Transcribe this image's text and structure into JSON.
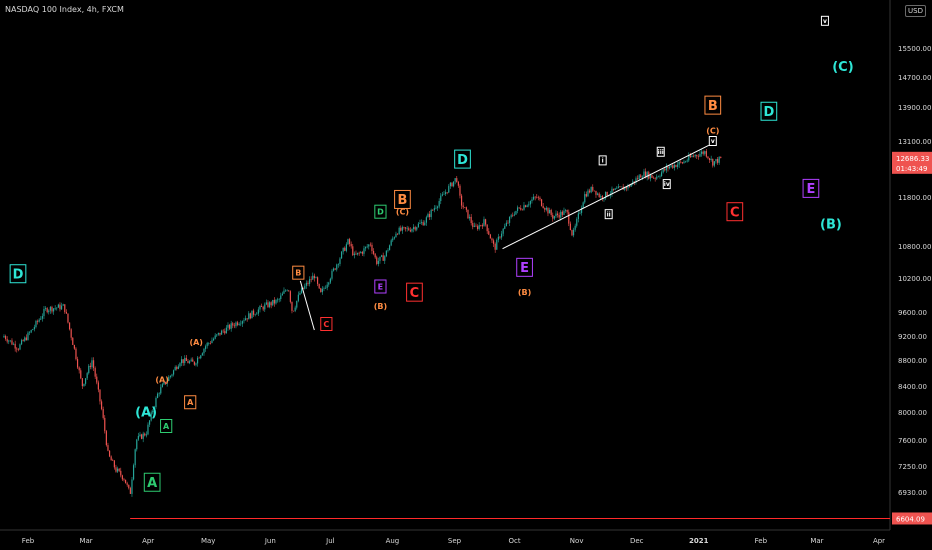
{
  "header": {
    "title": "NASDAQ 100 Index, 4h, FXCM",
    "currency": "USD"
  },
  "colors": {
    "background": "#000000",
    "candle_up": "#26a69a",
    "candle_down": "#ef5350",
    "axis_text": "#d9d9d9",
    "price_tag_bg": "#ef5350",
    "support_line": "#ff2a2a",
    "trend_line": "#ffffff"
  },
  "chart_data": {
    "type": "line",
    "x_axis": {
      "ticks": [
        "Feb",
        "Mar",
        "Apr",
        "May",
        "Jun",
        "Jul",
        "Aug",
        "Sep",
        "Oct",
        "Nov",
        "Dec",
        "2021",
        "Feb",
        "Mar",
        "Apr"
      ]
    },
    "y_axis": {
      "ticks": [
        "15500.00",
        "14700.00",
        "13900.00",
        "13100.00",
        "11800.00",
        "10800.00",
        "10200.00",
        "9600.00",
        "9200.00",
        "8800.00",
        "8400.00",
        "8000.00",
        "7600.00",
        "7250.00",
        "6930.00"
      ],
      "range": [
        6550,
        16300
      ]
    },
    "price_tags": {
      "current_price": "12686.33",
      "countdown": "01:43:49",
      "support_price": "6604.09"
    },
    "series": [
      {
        "x": [
          "2020-01-20",
          "2020-01-27",
          "2020-02-03",
          "2020-02-10",
          "2020-02-19",
          "2020-02-24",
          "2020-02-28",
          "2020-03-04",
          "2020-03-09",
          "2020-03-12",
          "2020-03-16",
          "2020-03-20",
          "2020-03-23",
          "2020-03-26",
          "2020-03-31",
          "2020-04-06",
          "2020-04-13",
          "2020-04-17",
          "2020-04-24",
          "2020-04-30",
          "2020-05-07",
          "2020-05-14",
          "2020-05-22",
          "2020-05-29",
          "2020-06-05",
          "2020-06-10",
          "2020-06-12",
          "2020-06-16",
          "2020-06-23",
          "2020-06-26",
          "2020-07-02",
          "2020-07-10",
          "2020-07-13",
          "2020-07-17",
          "2020-07-21",
          "2020-07-24",
          "2020-07-28",
          "2020-08-03",
          "2020-08-10",
          "2020-08-17",
          "2020-08-24",
          "2020-09-02",
          "2020-09-04",
          "2020-09-08",
          "2020-09-11",
          "2020-09-16",
          "2020-09-21",
          "2020-09-24",
          "2020-10-01",
          "2020-10-12",
          "2020-10-20",
          "2020-10-27",
          "2020-10-30",
          "2020-11-05",
          "2020-11-09",
          "2020-11-13",
          "2020-11-20",
          "2020-11-27",
          "2020-12-04",
          "2020-12-10",
          "2020-12-17",
          "2020-12-24",
          "2020-12-29",
          "2021-01-04",
          "2021-01-08",
          "2021-01-12"
        ],
        "y": [
          9200,
          9000,
          9300,
          9650,
          9700,
          9000,
          8400,
          8800,
          8000,
          7400,
          7200,
          7100,
          6900,
          7600,
          7700,
          8300,
          8600,
          8800,
          8750,
          9050,
          9250,
          9400,
          9550,
          9700,
          9800,
          10050,
          9600,
          9950,
          10250,
          9900,
          10300,
          10900,
          10600,
          10700,
          10850,
          10500,
          10600,
          11100,
          11150,
          11300,
          11700,
          12250,
          11700,
          11400,
          11150,
          11300,
          10750,
          11050,
          11500,
          11800,
          11400,
          11500,
          11000,
          11850,
          12000,
          11800,
          11950,
          12050,
          12350,
          12250,
          12500,
          12600,
          12750,
          12850,
          12600,
          12686
        ]
      }
    ],
    "grid": false,
    "annotations": [
      {
        "text": "D",
        "style": "boxed",
        "color": "#2ee6d6",
        "x": "2020-01-27",
        "y": 10280
      },
      {
        "text": "(A)",
        "style": "plain",
        "color": "#2ee6d6",
        "x": "2020-03-31",
        "y": 8000
      },
      {
        "text": "A",
        "style": "boxed",
        "color": "#2ecc71",
        "x": "2020-04-03",
        "y": 7050
      },
      {
        "text": "A",
        "style": "boxed",
        "color": "#2ecc71",
        "x": "2020-04-10",
        "y": 7800
      },
      {
        "text": "(A)",
        "style": "plain",
        "color": "#ff8c42",
        "x": "2020-04-08",
        "y": 8500
      },
      {
        "text": "A",
        "style": "boxed",
        "color": "#ff8c42",
        "x": "2020-04-22",
        "y": 8150
      },
      {
        "text": "(A)",
        "style": "plain",
        "color": "#ff8c42",
        "x": "2020-04-25",
        "y": 9100
      },
      {
        "text": "B",
        "style": "boxed",
        "color": "#ff8c42",
        "x": "2020-06-15",
        "y": 10300
      },
      {
        "text": "C",
        "style": "boxed",
        "color": "#ff3030",
        "x": "2020-06-29",
        "y": 9400
      },
      {
        "text": "D",
        "style": "boxed",
        "color": "#2ecc71",
        "x": "2020-07-26",
        "y": 11500
      },
      {
        "text": "E",
        "style": "boxed",
        "color": "#b040ff",
        "x": "2020-07-26",
        "y": 10050
      },
      {
        "text": "(B)",
        "style": "plain",
        "color": "#ff8c42",
        "x": "2020-07-26",
        "y": 9700
      },
      {
        "text": "B",
        "style": "boxed",
        "color": "#ff8c42",
        "x": "2020-08-06",
        "y": 11750
      },
      {
        "text": "(C)",
        "style": "plain",
        "color": "#ff8c42",
        "x": "2020-08-06",
        "y": 11500
      },
      {
        "text": "C",
        "style": "boxed",
        "color": "#ff3030",
        "x": "2020-08-12",
        "y": 9950
      },
      {
        "text": "D",
        "style": "boxed",
        "color": "#2ee6d6",
        "x": "2020-09-05",
        "y": 12680
      },
      {
        "text": "E",
        "style": "boxed",
        "color": "#b040ff",
        "x": "2020-10-06",
        "y": 10400
      },
      {
        "text": "(B)",
        "style": "plain",
        "color": "#ff8c42",
        "x": "2020-10-06",
        "y": 9950
      },
      {
        "text": "i",
        "style": "boxed",
        "color": "#ffffff",
        "x": "2020-11-14",
        "y": 12650
      },
      {
        "text": "ii",
        "style": "boxed",
        "color": "#ffffff",
        "x": "2020-11-17",
        "y": 11450
      },
      {
        "text": "iii",
        "style": "boxed",
        "color": "#ffffff",
        "x": "2020-12-13",
        "y": 12850
      },
      {
        "text": "iv",
        "style": "boxed",
        "color": "#ffffff",
        "x": "2020-12-16",
        "y": 12100
      },
      {
        "text": "v",
        "style": "boxed",
        "color": "#ffffff",
        "x": "2021-01-08",
        "y": 13100
      },
      {
        "text": "(C)",
        "style": "plain",
        "color": "#ff8c42",
        "x": "2021-01-08",
        "y": 13350
      },
      {
        "text": "B",
        "style": "boxed",
        "color": "#ff8c42",
        "x": "2021-01-08",
        "y": 13950
      },
      {
        "text": "C",
        "style": "boxed",
        "color": "#ff3030",
        "x": "2021-01-19",
        "y": 11500
      },
      {
        "text": "D",
        "style": "boxed",
        "color": "#2ee6d6",
        "x": "2021-02-05",
        "y": 13800
      },
      {
        "text": "E",
        "style": "boxed",
        "color": "#b040ff",
        "x": "2021-02-26",
        "y": 12000
      },
      {
        "text": "(B)",
        "style": "plain",
        "color": "#2ee6d6",
        "x": "2021-03-08",
        "y": 11250
      },
      {
        "text": "(C)",
        "style": "plain",
        "color": "#2ee6d6",
        "x": "2021-03-14",
        "y": 15000
      },
      {
        "text": "v",
        "style": "boxed",
        "color": "#ffffff",
        "x": "2021-03-05",
        "y": 16250
      }
    ],
    "trend_lines": [
      {
        "from": {
          "x": "2020-09-25",
          "y": 10750
        },
        "to": {
          "x": "2021-01-06",
          "y": 13000
        },
        "color": "#ffffff"
      },
      {
        "from": {
          "x": "2020-06-16",
          "y": 10150
        },
        "to": {
          "x": "2020-06-23",
          "y": 9300
        },
        "color": "#ffffff"
      }
    ],
    "horizontal_levels": [
      {
        "y": 6604.09,
        "color": "#ff2a2a"
      }
    ]
  }
}
